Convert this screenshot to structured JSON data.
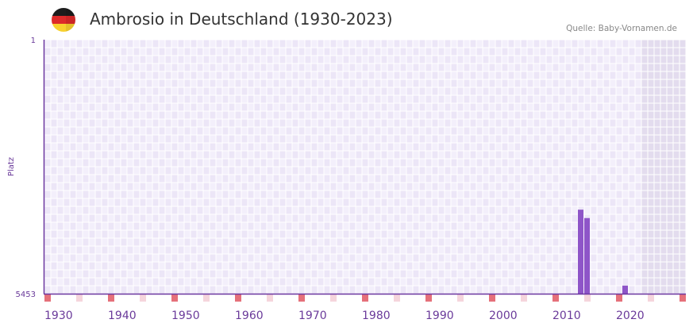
{
  "header": {
    "title": "Ambrosio in Deutschland (1930-2023)",
    "source": "Quelle: Baby-Vornamen.de",
    "flag_icon": "germany-flag-icon"
  },
  "colors": {
    "bar": "#8e55c8",
    "axis": "#6a35a0",
    "label": "#6a3a9a",
    "decade_marker": "#e5707a",
    "half_decade_marker": "#f5d5dc",
    "cell_a": "#f3effb",
    "cell_b": "#ece6f7",
    "future_cell": "#e3dcee"
  },
  "chart_data": {
    "type": "bar",
    "title": "Ambrosio in Deutschland (1930-2023)",
    "ylabel": "Platz",
    "xlabel": "",
    "y_inverted": true,
    "ylim": [
      1,
      5453
    ],
    "yticks": [
      "1",
      "5453"
    ],
    "xlim": [
      1930,
      2030
    ],
    "xticks": [
      "1930",
      "1940",
      "1950",
      "1960",
      "1970",
      "1980",
      "1990",
      "2000",
      "2010",
      "2020"
    ],
    "data_until": 2023,
    "grid": true,
    "series": [
      {
        "name": "Platz",
        "points": [
          {
            "year": 2014,
            "rank": 3650
          },
          {
            "year": 2015,
            "rank": 3830
          },
          {
            "year": 2021,
            "rank": 5280
          }
        ]
      }
    ]
  }
}
